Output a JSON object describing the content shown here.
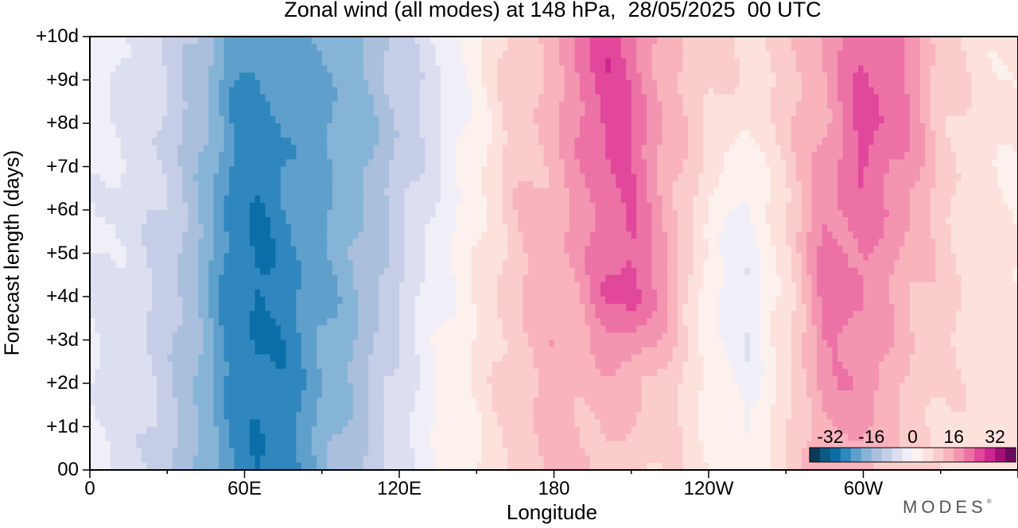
{
  "chart_data": {
    "type": "heatmap",
    "title": "Zonal wind (all modes) at 148 hPa,  28/05/2025  00 UTC",
    "xlabel": "Longitude",
    "ylabel": "Forecast length (days)",
    "x_ticks": [
      "0",
      "60E",
      "120E",
      "180",
      "120W",
      "60W"
    ],
    "x_tick_degrees": [
      0,
      60,
      120,
      180,
      240,
      300
    ],
    "y_ticks": [
      "00",
      "+1d",
      "+2d",
      "+3d",
      "+4d",
      "+5d",
      "+6d",
      "+7d",
      "+8d",
      "+9d",
      "+10d"
    ],
    "xlim": [
      0,
      360
    ],
    "ylim": [
      0,
      10
    ],
    "grid": false,
    "colorbar": {
      "tick_labels": [
        "-32",
        "-16",
        "0",
        "16",
        "32"
      ],
      "tick_values": [
        -32,
        -16,
        0,
        16,
        32
      ],
      "levels": [
        -40,
        -36,
        -32,
        -28,
        -24,
        -20,
        -16,
        -12,
        -8,
        -4,
        0,
        4,
        8,
        12,
        16,
        20,
        24,
        28,
        32,
        36,
        40
      ],
      "colors": [
        "#0d3a57",
        "#0e5a86",
        "#0b6ea8",
        "#2f87bd",
        "#5f9fcb",
        "#86b4d6",
        "#a9bfdc",
        "#c6cde6",
        "#dcdff0",
        "#f0eef7",
        "#fdf1ee",
        "#fde1dc",
        "#fbcccc",
        "#f8b3bd",
        "#f395b0",
        "#ec72a6",
        "#e1479a",
        "#cf2690",
        "#a3107a",
        "#6b0b5f"
      ],
      "placement": "bottom-right"
    },
    "profile_days": [
      0,
      2,
      4,
      6,
      8,
      10
    ],
    "profiles": [
      {
        "lon": 0,
        "values": [
          -4,
          -4,
          -4,
          -3,
          -3,
          -2
        ]
      },
      {
        "lon": 15,
        "values": [
          -6,
          -6,
          -6,
          -5,
          -5,
          -4
        ]
      },
      {
        "lon": 30,
        "values": [
          -10,
          -10,
          -10,
          -9,
          -9,
          -8
        ]
      },
      {
        "lon": 45,
        "values": [
          -18,
          -18,
          -18,
          -17,
          -16,
          -14
        ]
      },
      {
        "lon": 55,
        "values": [
          -24,
          -25,
          -27,
          -26,
          -24,
          -22
        ]
      },
      {
        "lon": 65,
        "values": [
          -28,
          -28,
          -29,
          -28,
          -26,
          -24
        ]
      },
      {
        "lon": 75,
        "values": [
          -26,
          -27,
          -27,
          -25,
          -24,
          -22
        ]
      },
      {
        "lon": 90,
        "values": [
          -18,
          -20,
          -21,
          -20,
          -22,
          -20
        ]
      },
      {
        "lon": 105,
        "values": [
          -12,
          -14,
          -16,
          -16,
          -18,
          -16
        ]
      },
      {
        "lon": 120,
        "values": [
          -5,
          -6,
          -8,
          -10,
          -12,
          -10
        ]
      },
      {
        "lon": 135,
        "values": [
          0,
          0,
          -1,
          -3,
          -5,
          -4
        ]
      },
      {
        "lon": 150,
        "values": [
          4,
          5,
          4,
          3,
          2,
          3
        ]
      },
      {
        "lon": 165,
        "values": [
          9,
          10,
          11,
          11,
          10,
          10
        ]
      },
      {
        "lon": 180,
        "values": [
          14,
          15,
          15,
          14,
          14,
          13
        ]
      },
      {
        "lon": 190,
        "values": [
          12,
          13,
          16,
          18,
          20,
          22
        ]
      },
      {
        "lon": 200,
        "values": [
          12,
          14,
          24,
          22,
          26,
          28
        ]
      },
      {
        "lon": 210,
        "values": [
          10,
          14,
          26,
          24,
          24,
          22
        ]
      },
      {
        "lon": 225,
        "values": [
          8,
          10,
          16,
          14,
          14,
          12
        ]
      },
      {
        "lon": 240,
        "values": [
          4,
          3,
          0,
          4,
          8,
          10
        ]
      },
      {
        "lon": 255,
        "values": [
          1,
          -2,
          -4,
          -2,
          4,
          8
        ]
      },
      {
        "lon": 270,
        "values": [
          8,
          6,
          6,
          8,
          10,
          10
        ]
      },
      {
        "lon": 285,
        "values": [
          14,
          18,
          22,
          20,
          16,
          16
        ]
      },
      {
        "lon": 300,
        "values": [
          14,
          20,
          20,
          22,
          26,
          24
        ]
      },
      {
        "lon": 315,
        "values": [
          10,
          12,
          14,
          18,
          22,
          20
        ]
      },
      {
        "lon": 330,
        "values": [
          8,
          8,
          10,
          10,
          10,
          10
        ]
      },
      {
        "lon": 345,
        "values": [
          6,
          6,
          6,
          5,
          6,
          6
        ]
      },
      {
        "lon": 360,
        "values": [
          5,
          5,
          5,
          4,
          4,
          4
        ]
      }
    ]
  },
  "brand": {
    "text": "MODES",
    "mark": "®"
  }
}
